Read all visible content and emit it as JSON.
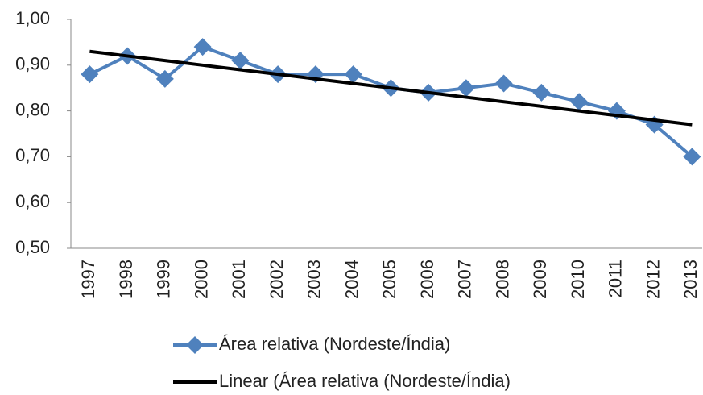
{
  "chart_data": {
    "type": "line",
    "categories": [
      "1997",
      "1998",
      "1999",
      "2000",
      "2001",
      "2002",
      "2003",
      "2004",
      "2005",
      "2006",
      "2007",
      "2008",
      "2009",
      "2010",
      "2011",
      "2012",
      "2013"
    ],
    "series": [
      {
        "name": "Área relativa (Nordeste/Índia)",
        "color": "#4f81bd",
        "marker": "diamond",
        "values": [
          0.88,
          0.92,
          0.87,
          0.94,
          0.91,
          0.88,
          0.88,
          0.88,
          0.85,
          0.84,
          0.85,
          0.86,
          0.84,
          0.82,
          0.8,
          0.77,
          0.7
        ]
      },
      {
        "name": "Linear (Área relativa (Nordeste/Índia)",
        "color": "#000000",
        "values": [
          0.93,
          0.92,
          0.91,
          0.9,
          0.89,
          0.88,
          0.87,
          0.86,
          0.85,
          0.84,
          0.83,
          0.82,
          0.81,
          0.8,
          0.79,
          0.78,
          0.77
        ]
      }
    ],
    "ylim": [
      0.5,
      1.0
    ],
    "yticks": [
      {
        "value": 0.5,
        "label": "0,50"
      },
      {
        "value": 0.6,
        "label": "0,60"
      },
      {
        "value": 0.7,
        "label": "0,70"
      },
      {
        "value": 0.8,
        "label": "0,80"
      },
      {
        "value": 0.9,
        "label": "0,90"
      },
      {
        "value": 1.0,
        "label": "1,00"
      }
    ],
    "grid": false,
    "legend": "bottom"
  }
}
